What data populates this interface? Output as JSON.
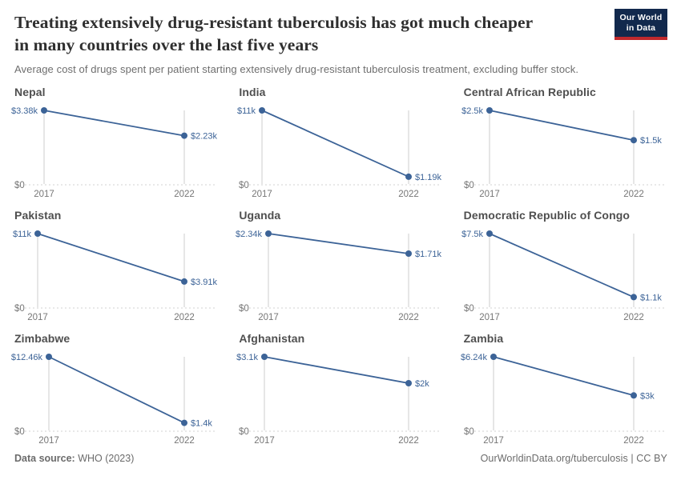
{
  "header": {
    "title_lines": [
      "Treating extensively drug-resistant tuberculosis has got much cheaper",
      "in many countries over the last five years"
    ],
    "subtitle": "Average cost of drugs spent per patient starting extensively drug-resistant tuberculosis treatment, excluding buffer stock.",
    "logo": {
      "line1": "Our World",
      "line2": "in Data",
      "bg_color": "#12294d",
      "accent_color": "#c0292d"
    }
  },
  "footer": {
    "source_label": "Data source:",
    "source_value": " WHO (2023)",
    "right_text": "OurWorldinData.org/tuberculosis | CC BY"
  },
  "chart_data": {
    "type": "line",
    "facet_layout": "3x3 small multiples, one line per country, y-axis scaled to each panel max, baseline at 0",
    "x": [
      2017,
      2022
    ],
    "x_tick_labels": [
      "2017",
      "2022"
    ],
    "y_zero_label": "$0",
    "ylim_note": "each panel spans $0 to its 2017 value",
    "title": "Treating extensively drug-resistant tuberculosis has got much cheaper in many countries over the last five years",
    "subtitle": "Average cost of drugs spent per patient starting extensively drug-resistant tuberculosis treatment, excluding buffer stock.",
    "colors": {
      "series": "#3c6397",
      "gridline": "#cccccc",
      "baseline": "#d9d9d9",
      "axis_text": "#767676"
    },
    "panels": [
      {
        "country": "Nepal",
        "values": [
          3380,
          2230
        ],
        "value_labels": [
          "$3.38k",
          "$2.23k"
        ]
      },
      {
        "country": "India",
        "values": [
          11000,
          1190
        ],
        "value_labels": [
          "$11k",
          "$1.19k"
        ]
      },
      {
        "country": "Central African Republic",
        "values": [
          2500,
          1500
        ],
        "value_labels": [
          "$2.5k",
          "$1.5k"
        ]
      },
      {
        "country": "Pakistan",
        "values": [
          11000,
          3910
        ],
        "value_labels": [
          "$11k",
          "$3.91k"
        ]
      },
      {
        "country": "Uganda",
        "values": [
          2340,
          1710
        ],
        "value_labels": [
          "$2.34k",
          "$1.71k"
        ]
      },
      {
        "country": "Democratic Republic of Congo",
        "values": [
          7500,
          1100
        ],
        "value_labels": [
          "$7.5k",
          "$1.1k"
        ]
      },
      {
        "country": "Zimbabwe",
        "values": [
          12460,
          1400
        ],
        "value_labels": [
          "$12.46k",
          "$1.4k"
        ]
      },
      {
        "country": "Afghanistan",
        "values": [
          3100,
          2000
        ],
        "value_labels": [
          "$3.1k",
          "$2k"
        ]
      },
      {
        "country": "Zambia",
        "values": [
          6240,
          3000
        ],
        "value_labels": [
          "$6.24k",
          "$3k"
        ]
      }
    ]
  }
}
